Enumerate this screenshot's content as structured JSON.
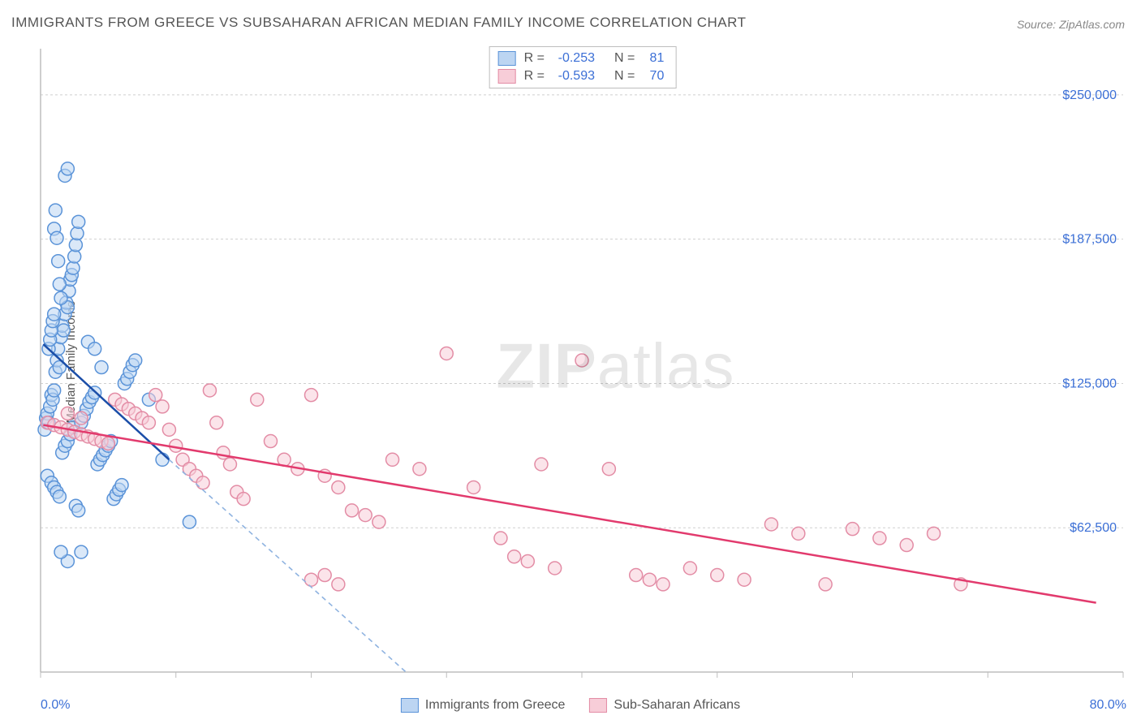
{
  "title": "IMMIGRANTS FROM GREECE VS SUBSAHARAN AFRICAN MEDIAN FAMILY INCOME CORRELATION CHART",
  "source_prefix": "Source: ",
  "source_name": "ZipAtlas.com",
  "y_axis_label": "Median Family Income",
  "watermark": {
    "bold": "ZIP",
    "rest": "atlas"
  },
  "x_axis": {
    "min_label": "0.0%",
    "max_label": "80.0%"
  },
  "stats_legend": {
    "rows": [
      {
        "swatch_fill": "#bcd5f2",
        "swatch_stroke": "#5a93d8",
        "r_label": "R =",
        "r_value": "-0.253",
        "n_label": "N =",
        "n_value": "81",
        "value_color": "#3b6fd6"
      },
      {
        "swatch_fill": "#f7cdd8",
        "swatch_stroke": "#e38ca5",
        "r_label": "R =",
        "r_value": "-0.593",
        "n_label": "N =",
        "n_value": "70",
        "value_color": "#3b6fd6"
      }
    ]
  },
  "bottom_legend": [
    {
      "swatch_fill": "#bcd5f2",
      "swatch_stroke": "#5a93d8",
      "label": "Immigrants from Greece"
    },
    {
      "swatch_fill": "#f7cdd8",
      "swatch_stroke": "#e38ca5",
      "label": "Sub-Saharan Africans"
    }
  ],
  "chart": {
    "type": "scatter",
    "background_color": "#ffffff",
    "grid_color": "#cfcfcf",
    "axis_color": "#bdbdbd",
    "xlim": [
      0,
      80
    ],
    "ylim": [
      0,
      270000
    ],
    "x_ticks": [
      0,
      10,
      20,
      30,
      40,
      50,
      60,
      70,
      80
    ],
    "y_ticks": [
      {
        "v": 62500,
        "label": "$62,500"
      },
      {
        "v": 125000,
        "label": "$125,000"
      },
      {
        "v": 187500,
        "label": "$187,500"
      },
      {
        "v": 250000,
        "label": "$250,000"
      }
    ],
    "marker_radius": 8,
    "marker_stroke_width": 1.5,
    "series": [
      {
        "name": "Immigrants from Greece",
        "fill": "#bcd5f2",
        "stroke": "#5a93d8",
        "fill_opacity": 0.55,
        "data": [
          [
            0.3,
            105000
          ],
          [
            0.4,
            110000
          ],
          [
            0.5,
            112000
          ],
          [
            0.6,
            108000
          ],
          [
            0.7,
            115000
          ],
          [
            0.8,
            120000
          ],
          [
            0.9,
            118000
          ],
          [
            1.0,
            122000
          ],
          [
            1.1,
            130000
          ],
          [
            1.2,
            135000
          ],
          [
            1.3,
            140000
          ],
          [
            1.4,
            132000
          ],
          [
            1.5,
            145000
          ],
          [
            1.6,
            150000
          ],
          [
            1.7,
            148000
          ],
          [
            1.8,
            155000
          ],
          [
            1.9,
            160000
          ],
          [
            2.0,
            158000
          ],
          [
            2.1,
            165000
          ],
          [
            2.2,
            170000
          ],
          [
            2.3,
            172000
          ],
          [
            2.4,
            175000
          ],
          [
            2.5,
            180000
          ],
          [
            2.6,
            185000
          ],
          [
            2.7,
            190000
          ],
          [
            2.8,
            195000
          ],
          [
            0.5,
            85000
          ],
          [
            0.8,
            82000
          ],
          [
            1.0,
            80000
          ],
          [
            1.2,
            78000
          ],
          [
            1.4,
            76000
          ],
          [
            1.6,
            95000
          ],
          [
            1.8,
            98000
          ],
          [
            2.0,
            100000
          ],
          [
            2.2,
            103000
          ],
          [
            2.4,
            106000
          ],
          [
            2.6,
            72000
          ],
          [
            2.8,
            70000
          ],
          [
            3.0,
            108000
          ],
          [
            3.2,
            111000
          ],
          [
            3.4,
            114000
          ],
          [
            3.6,
            117000
          ],
          [
            3.8,
            119000
          ],
          [
            4.0,
            121000
          ],
          [
            4.2,
            90000
          ],
          [
            4.4,
            92000
          ],
          [
            4.6,
            94000
          ],
          [
            4.8,
            96000
          ],
          [
            5.0,
            98000
          ],
          [
            5.2,
            100000
          ],
          [
            5.4,
            75000
          ],
          [
            5.6,
            77000
          ],
          [
            5.8,
            79000
          ],
          [
            6.0,
            81000
          ],
          [
            6.2,
            125000
          ],
          [
            6.4,
            127000
          ],
          [
            6.6,
            130000
          ],
          [
            6.8,
            133000
          ],
          [
            7.0,
            135000
          ],
          [
            2.0,
            48000
          ],
          [
            3.0,
            52000
          ],
          [
            1.5,
            52000
          ],
          [
            1.0,
            192000
          ],
          [
            1.1,
            200000
          ],
          [
            1.2,
            188000
          ],
          [
            1.3,
            178000
          ],
          [
            1.4,
            168000
          ],
          [
            1.5,
            162000
          ],
          [
            1.8,
            215000
          ],
          [
            2.0,
            218000
          ],
          [
            0.6,
            140000
          ],
          [
            0.7,
            144000
          ],
          [
            0.8,
            148000
          ],
          [
            0.9,
            152000
          ],
          [
            1.0,
            155000
          ],
          [
            3.5,
            143000
          ],
          [
            4.0,
            140000
          ],
          [
            4.5,
            132000
          ],
          [
            11.0,
            65000
          ],
          [
            8.0,
            118000
          ],
          [
            9.0,
            92000
          ]
        ],
        "regression": {
          "solid": {
            "x1": 0.2,
            "y1": 142000,
            "x2": 9.5,
            "y2": 92000,
            "color": "#1b4ea8",
            "width": 2.5
          },
          "dashed": {
            "x1": 9.5,
            "y1": 92000,
            "x2": 27.0,
            "y2": 0,
            "color": "#8fb3e0",
            "width": 1.6,
            "dash": "6,5"
          }
        }
      },
      {
        "name": "Sub-Saharan Africans",
        "fill": "#f7cdd8",
        "stroke": "#e38ca5",
        "fill_opacity": 0.55,
        "data": [
          [
            0.5,
            108000
          ],
          [
            1.0,
            107000
          ],
          [
            1.5,
            106000
          ],
          [
            2.0,
            105000
          ],
          [
            2.5,
            104000
          ],
          [
            3.0,
            103000
          ],
          [
            3.5,
            102000
          ],
          [
            4.0,
            101000
          ],
          [
            4.5,
            100000
          ],
          [
            5.0,
            99000
          ],
          [
            5.5,
            118000
          ],
          [
            6.0,
            116000
          ],
          [
            6.5,
            114000
          ],
          [
            7.0,
            112000
          ],
          [
            7.5,
            110000
          ],
          [
            8.0,
            108000
          ],
          [
            8.5,
            120000
          ],
          [
            9.0,
            115000
          ],
          [
            9.5,
            105000
          ],
          [
            10.0,
            98000
          ],
          [
            10.5,
            92000
          ],
          [
            11.0,
            88000
          ],
          [
            11.5,
            85000
          ],
          [
            12.0,
            82000
          ],
          [
            12.5,
            122000
          ],
          [
            13.0,
            108000
          ],
          [
            13.5,
            95000
          ],
          [
            14.0,
            90000
          ],
          [
            14.5,
            78000
          ],
          [
            15.0,
            75000
          ],
          [
            16.0,
            118000
          ],
          [
            17.0,
            100000
          ],
          [
            18.0,
            92000
          ],
          [
            19.0,
            88000
          ],
          [
            20.0,
            120000
          ],
          [
            21.0,
            85000
          ],
          [
            22.0,
            80000
          ],
          [
            23.0,
            70000
          ],
          [
            24.0,
            68000
          ],
          [
            25.0,
            65000
          ],
          [
            20.0,
            40000
          ],
          [
            21.0,
            42000
          ],
          [
            22.0,
            38000
          ],
          [
            26.0,
            92000
          ],
          [
            28.0,
            88000
          ],
          [
            30.0,
            138000
          ],
          [
            32.0,
            80000
          ],
          [
            34.0,
            58000
          ],
          [
            35.0,
            50000
          ],
          [
            36.0,
            48000
          ],
          [
            37.0,
            90000
          ],
          [
            38.0,
            45000
          ],
          [
            40.0,
            135000
          ],
          [
            42.0,
            88000
          ],
          [
            44.0,
            42000
          ],
          [
            45.0,
            40000
          ],
          [
            46.0,
            38000
          ],
          [
            48.0,
            45000
          ],
          [
            50.0,
            42000
          ],
          [
            52.0,
            40000
          ],
          [
            54.0,
            64000
          ],
          [
            56.0,
            60000
          ],
          [
            58.0,
            38000
          ],
          [
            60.0,
            62000
          ],
          [
            62.0,
            58000
          ],
          [
            64.0,
            55000
          ],
          [
            66.0,
            60000
          ],
          [
            68.0,
            38000
          ],
          [
            2.0,
            112000
          ],
          [
            3.0,
            110000
          ]
        ],
        "regression": {
          "solid": {
            "x1": 0.2,
            "y1": 107000,
            "x2": 78.0,
            "y2": 30000,
            "color": "#e23a6d",
            "width": 2.5
          }
        }
      }
    ]
  }
}
